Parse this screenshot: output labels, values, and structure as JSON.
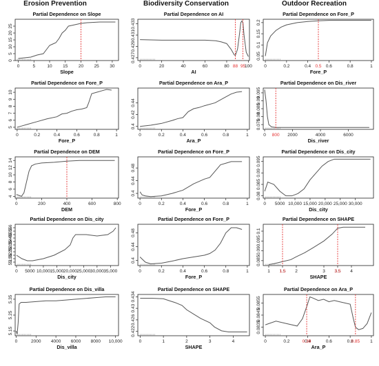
{
  "columns": [
    "Erosion Prevention",
    "Biodiversity Conservation",
    "Outdoor Recreation"
  ],
  "colors": {
    "line": "#555555",
    "axis": "#222222",
    "marker": "#e53030",
    "rug": "#888888"
  },
  "chart_data": [
    {
      "type": "line",
      "title": "Partial Dependence on Slope",
      "xlabel": "Slope",
      "xlim": [
        -1,
        32
      ],
      "ylim": [
        0,
        30
      ],
      "xticks": [
        0,
        5,
        10,
        15,
        20,
        25,
        30
      ],
      "yticks": [
        0,
        5,
        10,
        15,
        20,
        25
      ],
      "x": [
        0,
        2,
        4,
        6,
        8,
        9,
        10,
        11,
        12,
        13,
        14,
        15,
        16,
        17,
        18,
        20,
        22,
        26,
        31
      ],
      "y": [
        1.5,
        2,
        2.5,
        4,
        5,
        8,
        11,
        12,
        13,
        16,
        20,
        22,
        25,
        25.5,
        26,
        27,
        27.5,
        28,
        28
      ],
      "marker": 20
    },
    {
      "type": "line",
      "title": "Partial Dependence on AI",
      "xlabel": "AI",
      "xlim": [
        -2,
        101
      ],
      "ylim": [
        0.4265,
        0.4338
      ],
      "xticks": [
        0,
        20,
        40,
        60,
        80,
        100
      ],
      "yticks": [
        0.427,
        0.429,
        0.431,
        0.433
      ],
      "x": [
        0,
        20,
        40,
        60,
        70,
        75,
        80,
        84,
        87,
        88,
        90,
        92,
        93,
        94,
        95,
        96,
        98,
        100
      ],
      "y": [
        0.4302,
        0.4301,
        0.4301,
        0.4301,
        0.43,
        0.4298,
        0.4295,
        0.4285,
        0.4275,
        0.4274,
        0.4285,
        0.4315,
        0.4332,
        0.4335,
        0.4332,
        0.431,
        0.428,
        0.4272
      ],
      "markers": [
        88,
        95
      ],
      "marker_labels": [
        "88",
        "95"
      ]
    },
    {
      "type": "line",
      "title": "Partial Dependence on Fore_P",
      "xlabel": "Fore_P",
      "xlim": [
        -0.02,
        1.02
      ],
      "ylim": [
        0.03,
        0.215
      ],
      "xticks": [
        0.0,
        0.2,
        0.4,
        0.6,
        0.8,
        1.0
      ],
      "yticks": [
        0.05,
        0.1,
        0.15,
        0.2
      ],
      "x": [
        0,
        0.02,
        0.05,
        0.08,
        0.1,
        0.15,
        0.2,
        0.3,
        0.4,
        0.5,
        0.6,
        0.8,
        1.0
      ],
      "y": [
        0.05,
        0.11,
        0.14,
        0.155,
        0.165,
        0.18,
        0.19,
        0.2,
        0.205,
        0.208,
        0.21,
        0.21,
        0.21
      ],
      "marker": 0.5,
      "marker_labels": [
        "0.5"
      ]
    },
    {
      "type": "line",
      "title": "Partial Dependence on Fore_P",
      "xlabel": "Fore_P",
      "xlim": [
        -0.02,
        1.02
      ],
      "ylim": [
        4.7,
        10.6
      ],
      "xticks": [
        0.0,
        0.2,
        0.4,
        0.6,
        0.8,
        1.0
      ],
      "yticks": [
        5,
        6,
        7,
        8,
        9,
        10
      ],
      "x": [
        0,
        0.05,
        0.1,
        0.2,
        0.3,
        0.4,
        0.45,
        0.5,
        0.55,
        0.6,
        0.65,
        0.7,
        0.72,
        0.75,
        0.8,
        0.85,
        0.9,
        0.95
      ],
      "y": [
        5,
        5.2,
        5.4,
        5.8,
        6.2,
        6.5,
        6.9,
        7,
        7.3,
        7.5,
        7.6,
        7.8,
        8.5,
        9.8,
        10,
        10.2,
        10.4,
        10.3
      ]
    },
    {
      "type": "line",
      "title": "Partial Dependence on Ara_P",
      "xlabel": "Ara_P",
      "xlim": [
        -0.02,
        1.02
      ],
      "ylim": [
        0.395,
        0.465
      ],
      "xticks": [
        0.0,
        0.2,
        0.4,
        0.6,
        0.8,
        1.0
      ],
      "yticks": [
        0.4,
        0.42,
        0.44
      ],
      "x": [
        0,
        0.1,
        0.2,
        0.3,
        0.35,
        0.4,
        0.45,
        0.5,
        0.55,
        0.6,
        0.7,
        0.8,
        0.85,
        0.9,
        0.95
      ],
      "y": [
        0.4,
        0.402,
        0.405,
        0.41,
        0.413,
        0.415,
        0.425,
        0.43,
        0.432,
        0.435,
        0.44,
        0.45,
        0.455,
        0.458,
        0.459
      ]
    },
    {
      "type": "line",
      "title": "Partial Dependence on Dis_river",
      "xlabel": "Dis_river",
      "xlim": [
        -100,
        7800
      ],
      "ylim": [
        0.072,
        0.098
      ],
      "xticks": [
        0,
        2000,
        4000,
        6000
      ],
      "yticks": [
        0.075,
        0.08,
        0.085,
        0.09,
        0.095
      ],
      "x": [
        0,
        100,
        200,
        300,
        500,
        800,
        1500,
        3000,
        5000,
        7500
      ],
      "y": [
        0.097,
        0.09,
        0.08,
        0.075,
        0.0735,
        0.0732,
        0.0732,
        0.0732,
        0.0732,
        0.0732
      ],
      "marker": 800,
      "marker_labels": [
        "800"
      ]
    },
    {
      "type": "line",
      "title": "Partial Dependence on DEM",
      "xlabel": "DEM",
      "xlim": [
        -10,
        810
      ],
      "ylim": [
        3.5,
        15
      ],
      "xticks": [
        0,
        200,
        400,
        600,
        800
      ],
      "yticks": [
        4,
        6,
        8,
        10,
        12,
        14
      ],
      "x": [
        0,
        40,
        60,
        80,
        100,
        120,
        150,
        200,
        300,
        400,
        500,
        600,
        700,
        780
      ],
      "y": [
        4.5,
        4,
        5,
        8,
        11,
        12.5,
        13,
        13.3,
        13.5,
        13.8,
        14,
        14,
        14,
        14
      ],
      "marker": 400
    },
    {
      "type": "line",
      "title": "Partial Dependence on Fore_P",
      "xlabel": "Fore_P",
      "xlim": [
        -0.02,
        1.02
      ],
      "ylim": [
        0.385,
        0.515
      ],
      "xticks": [
        0.0,
        0.2,
        0.4,
        0.6,
        0.8,
        1.0
      ],
      "yticks": [
        0.4,
        0.44,
        0.48
      ],
      "x": [
        0,
        0.02,
        0.05,
        0.1,
        0.2,
        0.3,
        0.4,
        0.5,
        0.6,
        0.65,
        0.7,
        0.75,
        0.8,
        0.85,
        0.9,
        0.95
      ],
      "y": [
        0.405,
        0.395,
        0.392,
        0.39,
        0.392,
        0.4,
        0.41,
        0.43,
        0.445,
        0.45,
        0.47,
        0.49,
        0.495,
        0.5,
        0.5,
        0.5
      ]
    },
    {
      "type": "line",
      "title": "Partial Dependence on Dis_city",
      "xlabel": "Dis_city",
      "xlim": [
        -500,
        36000
      ],
      "ylim": [
        0.079,
        0.097
      ],
      "xticks": [
        0,
        5000,
        10000,
        15000,
        20000,
        25000,
        30000
      ],
      "xtick_labels": [
        "0",
        "5000",
        "10,000",
        "15,000",
        "20,000",
        "25,000",
        "30,000"
      ],
      "yticks": [
        0.08,
        0.085,
        0.09,
        0.095
      ],
      "x": [
        0,
        1000,
        3000,
        5000,
        7000,
        9000,
        11000,
        13000,
        15000,
        17000,
        19000,
        21000,
        23000,
        27000,
        31000,
        35000
      ],
      "y": [
        0.082,
        0.086,
        0.085,
        0.082,
        0.08,
        0.08,
        0.081,
        0.083,
        0.087,
        0.09,
        0.093,
        0.095,
        0.096,
        0.096,
        0.096,
        0.096
      ]
    },
    {
      "type": "line",
      "title": "Partial Dependence on Dis_city",
      "xlabel": "Dis_city",
      "xlim": [
        -500,
        38000
      ],
      "ylim": [
        5.05,
        5.65
      ],
      "xticks": [
        0,
        5000,
        10000,
        15000,
        20000,
        25000,
        30000,
        35000
      ],
      "xtick_labels": [
        "0",
        "5000",
        "10,000",
        "15,000",
        "20,000",
        "25,000",
        "30,000",
        "35,000"
      ],
      "yticks": [
        5.1,
        5.15,
        5.2,
        5.25,
        5.3,
        5.35,
        5.4,
        5.45,
        5.5,
        5.55,
        5.6
      ],
      "ytick_labels": [
        "5.1",
        "5.15",
        "5.2",
        "5.25",
        "5.3",
        "5.35",
        "5.4",
        "5.45",
        "5.5",
        "5.55",
        "5.6"
      ],
      "x": [
        0,
        2000,
        4000,
        6000,
        10000,
        14000,
        18000,
        20000,
        21000,
        22000,
        26000,
        30000,
        34000,
        36000,
        37000
      ],
      "y": [
        5.2,
        5.15,
        5.12,
        5.12,
        5.15,
        5.2,
        5.28,
        5.35,
        5.45,
        5.5,
        5.5,
        5.48,
        5.5,
        5.55,
        5.6
      ]
    },
    {
      "type": "line",
      "title": "Partial Dependence on Fore_P",
      "xlabel": "Fore_P",
      "xlim": [
        -0.02,
        1.02
      ],
      "ylim": [
        0.385,
        0.505
      ],
      "xticks": [
        0.0,
        0.2,
        0.4,
        0.6,
        0.8,
        1.0
      ],
      "yticks": [
        0.4,
        0.44,
        0.48
      ],
      "x": [
        0,
        0.05,
        0.1,
        0.2,
        0.3,
        0.4,
        0.5,
        0.6,
        0.65,
        0.7,
        0.75,
        0.8,
        0.85,
        0.9,
        0.95
      ],
      "y": [
        0.41,
        0.395,
        0.39,
        0.392,
        0.398,
        0.405,
        0.41,
        0.415,
        0.42,
        0.43,
        0.45,
        0.48,
        0.495,
        0.495,
        0.49
      ]
    },
    {
      "type": "line",
      "title": "Partial Dependence on SHAPE",
      "xlabel": "SHAPE",
      "xlim": [
        0.8,
        4.8
      ],
      "ylim": [
        0.0825,
        0.1035
      ],
      "xticks": [
        1,
        1.5,
        2,
        3,
        3.5,
        4
      ],
      "xtick_labels": [
        "1",
        "1.5",
        "2",
        "3",
        "3.5",
        "4"
      ],
      "yticks": [
        0.085,
        0.09,
        0.095,
        0.1
      ],
      "x": [
        1,
        1.2,
        1.5,
        1.8,
        2,
        2.3,
        2.6,
        3,
        3.3,
        3.5,
        3.7,
        4,
        4.5
      ],
      "y": [
        0.083,
        0.0835,
        0.0845,
        0.0855,
        0.087,
        0.089,
        0.0915,
        0.095,
        0.0985,
        0.1015,
        0.102,
        0.102,
        0.102
      ],
      "markers": [
        1.5,
        3.5
      ],
      "marker_labels": [
        "1.5",
        "3.5"
      ]
    },
    {
      "type": "line",
      "title": "Partial Dependence on Dis_villa",
      "xlabel": "Dis_villa",
      "xlim": [
        -100,
        10300
      ],
      "ylim": [
        5.12,
        5.38
      ],
      "xticks": [
        0,
        2000,
        4000,
        6000,
        8000,
        10000
      ],
      "xtick_labels": [
        "0",
        "2000",
        "4000",
        "6000",
        "8000",
        "10,000"
      ],
      "yticks": [
        5.15,
        5.25,
        5.35
      ],
      "x": [
        0,
        100,
        200,
        300,
        500,
        1000,
        2000,
        3000,
        4000,
        5000,
        6000,
        7000,
        8000,
        9000,
        10000
      ],
      "y": [
        5.15,
        5.13,
        5.2,
        5.32,
        5.33,
        5.33,
        5.335,
        5.34,
        5.34,
        5.345,
        5.35,
        5.355,
        5.36,
        5.365,
        5.365
      ]
    },
    {
      "type": "line",
      "title": "Partial Dependence on SHAPE",
      "xlabel": "SHAPE",
      "xlim": [
        -0.1,
        4.7
      ],
      "ylim": [
        0.4205,
        0.4348
      ],
      "xticks": [
        0,
        1,
        2,
        3,
        4
      ],
      "yticks": [
        0.422,
        0.426,
        0.43,
        0.434
      ],
      "x": [
        0,
        0.5,
        1,
        1.3,
        1.5,
        1.8,
        2,
        2.3,
        2.6,
        3,
        3.2,
        3.5,
        3.8,
        4.2,
        4.6
      ],
      "y": [
        0.4335,
        0.4335,
        0.4333,
        0.4325,
        0.432,
        0.431,
        0.4295,
        0.428,
        0.4265,
        0.425,
        0.4235,
        0.4222,
        0.4218,
        0.4218,
        0.4218
      ]
    },
    {
      "type": "line",
      "title": "Partial Dependence on Ara_P",
      "xlabel": "Ara_P",
      "xlim": [
        -0.02,
        1.02
      ],
      "ylim": [
        0.0828,
        0.0862
      ],
      "xticks": [
        0.0,
        0.2,
        0.4,
        0.6,
        0.8,
        1.0
      ],
      "yticks": [
        0.0835,
        0.0845,
        0.0855
      ],
      "x": [
        0,
        0.1,
        0.2,
        0.3,
        0.35,
        0.39,
        0.42,
        0.45,
        0.5,
        0.55,
        0.6,
        0.65,
        0.7,
        0.75,
        0.8,
        0.83,
        0.85,
        0.88,
        0.92,
        0.96,
        1.0
      ],
      "y": [
        0.0837,
        0.084,
        0.0838,
        0.0836,
        0.0842,
        0.0852,
        0.086,
        0.0859,
        0.0857,
        0.0858,
        0.0856,
        0.0857,
        0.0856,
        0.0855,
        0.0854,
        0.0842,
        0.0835,
        0.0833,
        0.0834,
        0.0838,
        0.0847
      ],
      "markers": [
        0.39,
        0.85
      ],
      "marker_labels": [
        "0.39",
        "0.85"
      ]
    }
  ]
}
